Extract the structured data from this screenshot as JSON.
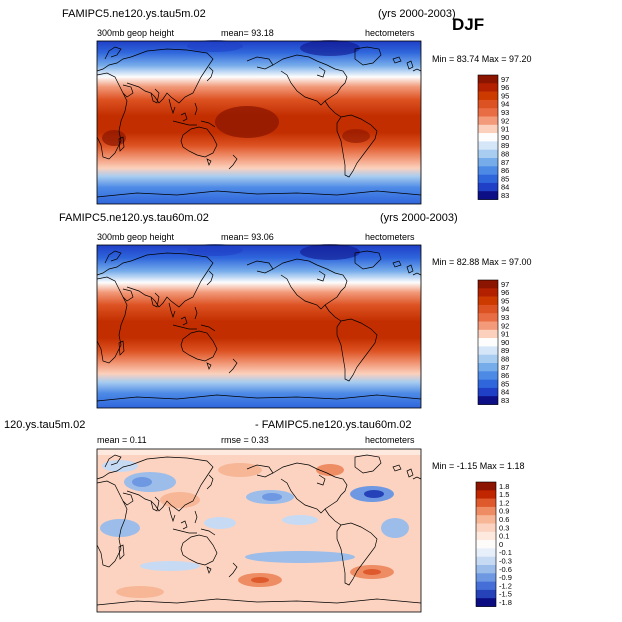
{
  "season_label": "DJF",
  "chart_data": [
    {
      "type": "heatmap",
      "title": "FAMIPC5.ne120.ys.tau5m.02",
      "years": "(yrs 2000-2003)",
      "field": "300mb geop height",
      "mean_text": "mean=   93.18",
      "units": "hectometers",
      "minmax_text": "Min =   83.74  Max =   97.20",
      "stats": {
        "mean": 93.18,
        "min": 83.74,
        "max": 97.2
      },
      "colorbar": {
        "labels": [
          "97",
          "96",
          "95",
          "94",
          "93",
          "92",
          "91",
          "90",
          "89",
          "88",
          "87",
          "86",
          "85",
          "84",
          "83"
        ],
        "colors": [
          "#8b1500",
          "#b32000",
          "#cc3a00",
          "#dd5222",
          "#e96d44",
          "#f29a7a",
          "#fbd0bc",
          "#fdfdfd",
          "#d4e6f7",
          "#a9cdf0",
          "#76acea",
          "#4d8ae6",
          "#2f66dc",
          "#1f3fc6",
          "#0d0f86"
        ]
      }
    },
    {
      "type": "heatmap",
      "title": "FAMIPC5.ne120.ys.tau60m.02",
      "years": "(yrs 2000-2003)",
      "field": "300mb geop height",
      "mean_text": "mean=   93.06",
      "units": "hectometers",
      "minmax_text": "Min =   82.88  Max =   97.00",
      "stats": {
        "mean": 93.06,
        "min": 82.88,
        "max": 97.0
      },
      "colorbar": {
        "labels": [
          "97",
          "96",
          "95",
          "94",
          "93",
          "92",
          "91",
          "90",
          "89",
          "88",
          "87",
          "86",
          "85",
          "84",
          "83"
        ],
        "colors": [
          "#8b1500",
          "#b32000",
          "#cc3a00",
          "#dd5222",
          "#e96d44",
          "#f29a7a",
          "#fbd0bc",
          "#fdfdfd",
          "#d4e6f7",
          "#a9cdf0",
          "#76acea",
          "#4d8ae6",
          "#2f66dc",
          "#1f3fc6",
          "#0d0f86"
        ]
      }
    },
    {
      "type": "heatmap",
      "title_left": "120.ys.tau5m.02",
      "title_right": "- FAMIPC5.ne120.ys.tau60m.02",
      "mean_text": "mean =    0.11",
      "rmse_text": "rmse =    0.33",
      "units": "hectometers",
      "minmax_text": "Min =  -1.15  Max =    1.18",
      "stats": {
        "mean": 0.11,
        "rmse": 0.33,
        "min": -1.15,
        "max": 1.18
      },
      "colorbar": {
        "labels": [
          "1.8",
          "1.5",
          "1.2",
          "0.9",
          "0.6",
          "0.3",
          "0.1",
          "0",
          "-0.1",
          "-0.3",
          "-0.6",
          "-0.9",
          "-1.2",
          "-1.5",
          "-1.8"
        ],
        "colors": [
          "#8b1500",
          "#c02600",
          "#de5a2c",
          "#ee8c64",
          "#f7b696",
          "#fbd3c0",
          "#fde9de",
          "#fefcfa",
          "#e7effa",
          "#c7daf3",
          "#9cbdea",
          "#6f98e2",
          "#456ed6",
          "#2642b8",
          "#0b0c82"
        ]
      }
    }
  ]
}
